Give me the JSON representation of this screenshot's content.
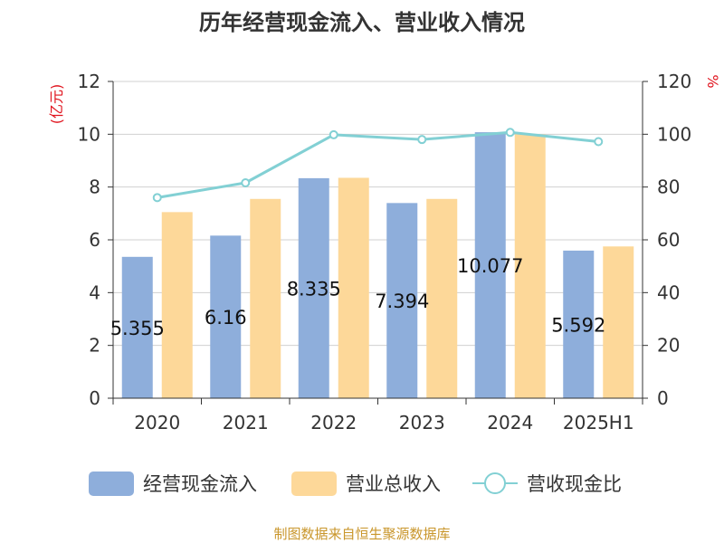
{
  "chart_data": {
    "type": "bar",
    "title": "历年经营现金流入、营业收入情况",
    "categories": [
      "2020",
      "2021",
      "2022",
      "2023",
      "2024",
      "2025H1"
    ],
    "y_left": {
      "unit_label": "(亿元)",
      "ylim": [
        0,
        12
      ],
      "ticks": [
        "0",
        "2",
        "4",
        "6",
        "8",
        "10",
        "12"
      ]
    },
    "y_right": {
      "unit_label": "%",
      "ylim": [
        0,
        120
      ],
      "ticks": [
        "0",
        "20",
        "40",
        "60",
        "80",
        "100",
        "120"
      ]
    },
    "series": [
      {
        "name": "经营现金流入",
        "type": "bar",
        "axis": "left",
        "color": "#8eaedb",
        "values": [
          5.355,
          6.16,
          8.335,
          7.394,
          10.077,
          5.592
        ],
        "data_labels": [
          "5.355",
          "6.16",
          "8.335",
          "7.394",
          "10.077",
          "5.592"
        ]
      },
      {
        "name": "营业总收入",
        "type": "bar",
        "axis": "left",
        "color": "#fdd899",
        "values": [
          7.05,
          7.55,
          8.35,
          7.55,
          10.0,
          5.75
        ]
      },
      {
        "name": "营收现金比",
        "type": "line",
        "axis": "right",
        "color": "#82d0d4",
        "values": [
          76,
          81.6,
          99.8,
          98.0,
          100.7,
          97.2
        ]
      }
    ],
    "grid": true,
    "legend_position": "bottom"
  },
  "source_text": "制图数据来自恒生聚源数据库"
}
